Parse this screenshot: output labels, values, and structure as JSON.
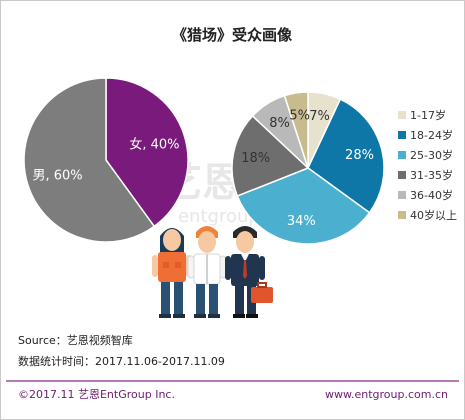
{
  "title": "《猎场》受众画像",
  "watermark": {
    "cn": "艺恩",
    "en": "entgroup"
  },
  "chart_data": [
    {
      "type": "pie",
      "name": "gender",
      "slices": [
        {
          "label": "女",
          "value": 40,
          "color": "#7a1a7c",
          "text": "女, 40%"
        },
        {
          "label": "男",
          "value": 60,
          "color": "#7d7d7d",
          "text": "男, 60%"
        }
      ]
    },
    {
      "type": "pie",
      "name": "age",
      "slices": [
        {
          "label": "1-17岁",
          "value": 7,
          "color": "#e7e2cd",
          "text": "7%"
        },
        {
          "label": "18-24岁",
          "value": 28,
          "color": "#0f77a8",
          "text": "28%"
        },
        {
          "label": "25-30岁",
          "value": 34,
          "color": "#4bb0cf",
          "text": "34%"
        },
        {
          "label": "31-35岁",
          "value": 18,
          "color": "#6e6e6e",
          "text": "18%"
        },
        {
          "label": "36-40岁",
          "value": 8,
          "color": "#b9b9b9",
          "text": "8%"
        },
        {
          "label": "40岁以上",
          "value": 5,
          "color": "#c8bc8e",
          "text": "5%"
        }
      ],
      "legend_position": "right"
    }
  ],
  "source": "Source：艺恩视频智库",
  "stat_time": "数据统计时间：2017.11.06-2017.11.09",
  "footer": {
    "copyright": "©2017.11 艺恩EntGroup Inc.",
    "website": "www.entgroup.com.cn"
  }
}
